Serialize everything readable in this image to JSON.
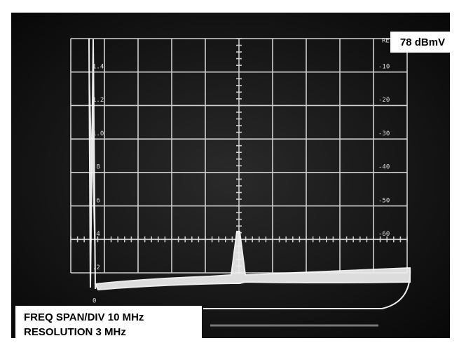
{
  "reference": {
    "marker": "REF",
    "level": "78 dBmV"
  },
  "right_scale": [
    "-10",
    "-20",
    "-30",
    "-40",
    "-50",
    "-60"
  ],
  "left_scale": [
    "1.4",
    "1.2",
    "1.0",
    ".8",
    ".6",
    ".4",
    ".2",
    "0"
  ],
  "caption": {
    "span": "FREQ SPAN/DIV 10 MHz",
    "resolution": "RESOLUTION 3 MHz"
  }
}
